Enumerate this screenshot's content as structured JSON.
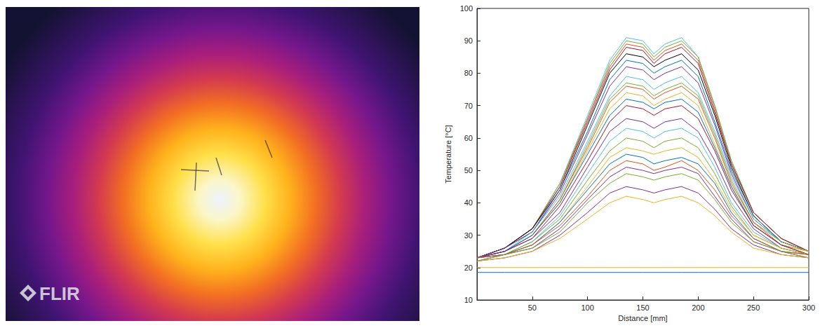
{
  "thermal_image": {
    "logo": "FLIR"
  },
  "chart_data": {
    "type": "line",
    "x_label": "Distance [mm]",
    "y_label": "Temperature [°C]",
    "xlim": [
      0,
      300
    ],
    "xticks": [
      50,
      100,
      150,
      200,
      250,
      300
    ],
    "ylim": [
      10,
      100
    ],
    "yticks": [
      10,
      20,
      30,
      40,
      50,
      60,
      70,
      80,
      90,
      100
    ],
    "grid": false,
    "x": [
      0,
      25,
      50,
      75,
      100,
      120,
      135,
      150,
      160,
      170,
      185,
      200,
      215,
      230,
      250,
      275,
      300
    ],
    "series": [
      {
        "color": "#4dbeee",
        "values": [
          23,
          26,
          32,
          46,
          67,
          84,
          91,
          90,
          86,
          89,
          91,
          85,
          70,
          53,
          37,
          29,
          25
        ]
      },
      {
        "color": "#77ac30",
        "values": [
          23,
          26,
          32,
          46,
          66,
          83,
          90,
          89,
          85,
          88,
          90,
          85,
          70,
          53,
          37,
          29,
          25
        ]
      },
      {
        "color": "#d95319",
        "values": [
          23,
          26,
          32,
          45,
          66,
          82,
          89,
          88,
          84,
          87,
          89,
          84,
          69,
          52,
          37,
          29,
          25
        ]
      },
      {
        "color": "#a2142f",
        "values": [
          23,
          26,
          32,
          45,
          65,
          81,
          88,
          87,
          83,
          86,
          88,
          83,
          68,
          52,
          37,
          29,
          25
        ]
      },
      {
        "color": "#000000",
        "values": [
          23,
          26,
          32,
          44,
          64,
          80,
          86,
          85,
          82,
          84,
          86,
          81,
          67,
          51,
          36,
          28,
          25
        ]
      },
      {
        "color": "#0072bd",
        "values": [
          23,
          26,
          31,
          44,
          62,
          78,
          84,
          83,
          80,
          82,
          84,
          79,
          65,
          50,
          36,
          28,
          25
        ]
      },
      {
        "color": "#7e2f8e",
        "values": [
          23,
          26,
          31,
          43,
          61,
          76,
          82,
          81,
          78,
          80,
          82,
          77,
          64,
          49,
          35,
          28,
          25
        ]
      },
      {
        "color": "#4dbeee",
        "values": [
          23,
          25,
          31,
          42,
          59,
          73,
          79,
          78,
          75,
          77,
          79,
          74,
          62,
          48,
          35,
          28,
          25
        ]
      },
      {
        "color": "#77ac30",
        "values": [
          23,
          25,
          30,
          41,
          58,
          72,
          77,
          76,
          73,
          75,
          77,
          73,
          61,
          47,
          34,
          28,
          25
        ]
      },
      {
        "color": "#d95319",
        "values": [
          23,
          25,
          30,
          41,
          57,
          71,
          76,
          75,
          72,
          74,
          76,
          72,
          60,
          46,
          34,
          27,
          25
        ]
      },
      {
        "color": "#edb120",
        "values": [
          23,
          25,
          30,
          40,
          56,
          69,
          74,
          73,
          70,
          72,
          74,
          70,
          58,
          45,
          33,
          27,
          25
        ]
      },
      {
        "color": "#0072bd",
        "values": [
          23,
          25,
          30,
          40,
          55,
          67,
          72,
          71,
          69,
          71,
          72,
          68,
          57,
          45,
          33,
          27,
          24
        ]
      },
      {
        "color": "#a2142f",
        "values": [
          23,
          25,
          29,
          39,
          53,
          65,
          70,
          69,
          67,
          69,
          70,
          66,
          56,
          44,
          33,
          27,
          24
        ]
      },
      {
        "color": "#7e2f8e",
        "values": [
          23,
          25,
          29,
          37,
          51,
          62,
          66,
          65,
          63,
          65,
          66,
          62,
          53,
          42,
          32,
          26,
          24
        ]
      },
      {
        "color": "#4dbeee",
        "values": [
          23,
          24,
          28,
          36,
          49,
          59,
          63,
          62,
          60,
          62,
          63,
          60,
          51,
          40,
          31,
          26,
          24
        ]
      },
      {
        "color": "#77ac30",
        "values": [
          23,
          24,
          28,
          35,
          47,
          56,
          60,
          59,
          57,
          59,
          60,
          57,
          49,
          39,
          30,
          26,
          24
        ]
      },
      {
        "color": "#edb120",
        "values": [
          23,
          24,
          27,
          34,
          45,
          54,
          57,
          56,
          55,
          56,
          57,
          54,
          47,
          38,
          30,
          26,
          24
        ]
      },
      {
        "color": "#0072bd",
        "values": [
          23,
          24,
          27,
          34,
          44,
          52,
          55,
          54,
          52,
          53,
          54,
          52,
          46,
          37,
          29,
          25,
          24
        ]
      },
      {
        "color": "#d95319",
        "values": [
          23,
          24,
          27,
          33,
          42,
          50,
          53,
          52,
          50,
          51,
          53,
          50,
          44,
          36,
          29,
          25,
          24
        ]
      },
      {
        "color": "#7e2f8e",
        "values": [
          22,
          24,
          26,
          32,
          41,
          48,
          51,
          50,
          49,
          50,
          51,
          49,
          42,
          35,
          28,
          25,
          23
        ]
      },
      {
        "color": "#77ac30",
        "values": [
          22,
          24,
          26,
          31,
          40,
          46,
          49,
          48,
          47,
          48,
          49,
          47,
          41,
          34,
          28,
          25,
          23
        ]
      },
      {
        "color": "#7e2f8e",
        "values": [
          22,
          23,
          25,
          30,
          37,
          43,
          45,
          44,
          43,
          44,
          45,
          43,
          38,
          32,
          27,
          24,
          23
        ]
      },
      {
        "color": "#edb120",
        "values": [
          22,
          23,
          25,
          29,
          35,
          40,
          42,
          41,
          40,
          41,
          42,
          40,
          36,
          31,
          26,
          24,
          23
        ]
      },
      {
        "color": "#edb120",
        "values": [
          20,
          20,
          20,
          20,
          20,
          20,
          20,
          20,
          20,
          20,
          20,
          20,
          20,
          20,
          20,
          20,
          20
        ]
      },
      {
        "color": "#0072bd",
        "values": [
          18.5,
          18.5,
          18.5,
          18.5,
          18.5,
          18.5,
          18.5,
          18.5,
          18.5,
          18.5,
          18.5,
          18.5,
          18.5,
          18.5,
          18.5,
          18.5,
          18.5
        ]
      }
    ]
  }
}
